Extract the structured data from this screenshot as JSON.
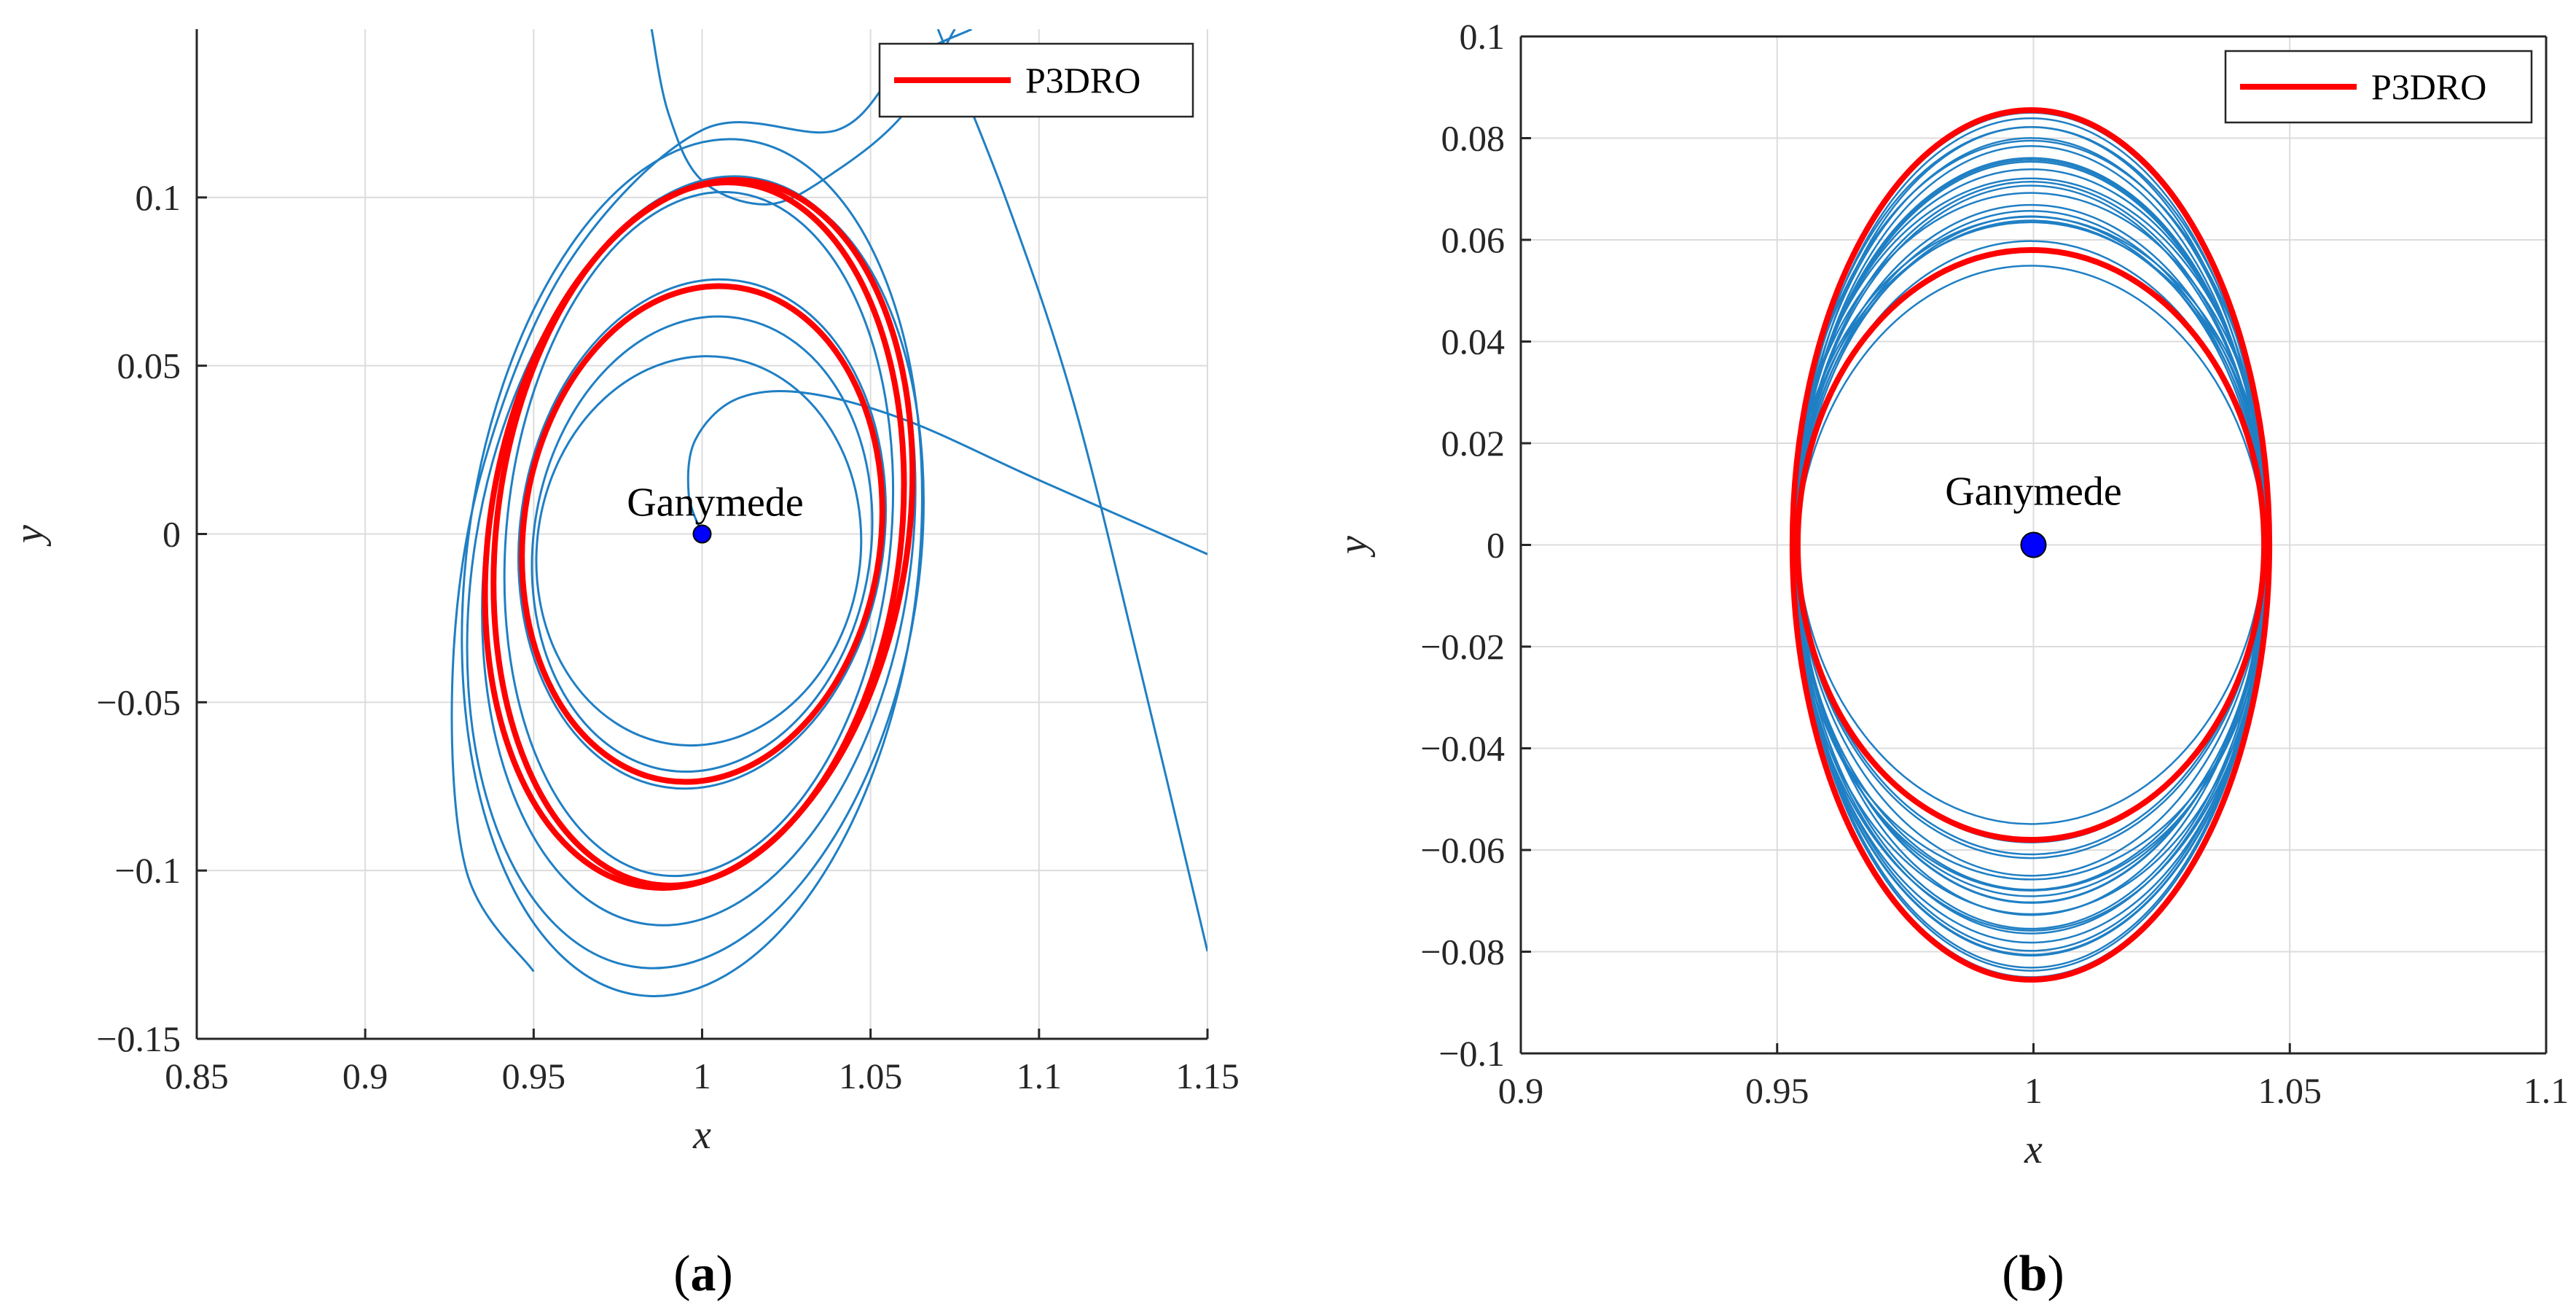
{
  "colors": {
    "orbit": "#1f7fc4",
    "p3dro": "#ff0000",
    "body": "#0000ff",
    "grid": "#dcdcdc",
    "axis": "#262626"
  },
  "chart_data": [
    {
      "type": "line",
      "panel": "a",
      "caption_open": "(",
      "caption_letter": "a",
      "caption_close": ")",
      "xlabel": "x",
      "ylabel": "y",
      "xlim": [
        0.85,
        1.15
      ],
      "ylim": [
        -0.15,
        0.15
      ],
      "xticks": [
        0.85,
        0.9,
        0.95,
        1,
        1.05,
        1.1,
        1.15
      ],
      "xtick_labels": [
        "0.85",
        "0.9",
        "0.95",
        "1",
        "1.05",
        "1.1",
        "1.15"
      ],
      "yticks": [
        -0.15,
        -0.1,
        -0.05,
        0,
        0.05,
        0.1
      ],
      "ytick_labels": [
        "−0.15",
        "−0.1",
        "−0.05",
        "0",
        "0.05",
        "0.1"
      ],
      "grid": true,
      "legend": {
        "label": "P3DRO",
        "location": "top-right"
      },
      "annotation": {
        "text": "Ganymede",
        "x": 1.0,
        "y": 0.0
      },
      "primary": {
        "name": "Ganymede",
        "x": 1.0,
        "y": 0.0
      },
      "series": [
        {
          "name": "P3DRO",
          "kind": "ellipse",
          "cx": 1.0,
          "cy": 0.0,
          "rx": 0.053,
          "ry": 0.074,
          "tilt": 8
        },
        {
          "name": "P3DRO",
          "kind": "ellipse",
          "cx": 0.999,
          "cy": 0.0,
          "rx": 0.06,
          "ry": 0.105,
          "tilt": 7
        },
        {
          "name": "P3DRO",
          "kind": "ellipse",
          "cx": 0.999,
          "cy": 0.0,
          "rx": 0.062,
          "ry": 0.106,
          "tilt": 9
        }
      ],
      "trajectories": [
        {
          "kind": "ellipse",
          "cx": 1.0,
          "cy": 0.0,
          "rx": 0.054,
          "ry": 0.076,
          "tilt": 8
        },
        {
          "kind": "ellipse",
          "cx": 1.0,
          "cy": -0.003,
          "rx": 0.05,
          "ry": 0.068,
          "tilt": 9
        },
        {
          "kind": "ellipse",
          "cx": 0.999,
          "cy": 0.0,
          "rx": 0.057,
          "ry": 0.102,
          "tilt": 6
        },
        {
          "kind": "ellipse",
          "cx": 0.999,
          "cy": -0.005,
          "rx": 0.063,
          "ry": 0.112,
          "tilt": 8
        },
        {
          "kind": "ellipse",
          "cx": 0.998,
          "cy": -0.012,
          "rx": 0.066,
          "ry": 0.118,
          "tilt": 9
        },
        {
          "kind": "ellipse",
          "cx": 0.997,
          "cy": -0.01,
          "rx": 0.067,
          "ry": 0.128,
          "tilt": 7
        },
        {
          "kind": "ellipse",
          "cx": 0.999,
          "cy": -0.005,
          "rx": 0.048,
          "ry": 0.058,
          "tilt": 8
        },
        {
          "kind": "path",
          "x": [
            1.0,
            0.996,
            0.998,
            1.01,
            1.03,
            1.06,
            1.1,
            1.15
          ],
          "y": [
            0.0,
            0.012,
            0.028,
            0.04,
            0.042,
            0.034,
            0.016,
            -0.006
          ]
        },
        {
          "kind": "path",
          "x": [
            0.95,
            0.93,
            0.926,
            0.935,
            0.96,
            1.0,
            1.04,
            1.06,
            1.08
          ],
          "y": [
            -0.13,
            -0.1,
            -0.04,
            0.02,
            0.08,
            0.12,
            0.12,
            0.14,
            0.15
          ]
        },
        {
          "kind": "path",
          "x": [
            1.07,
            1.09,
            1.11,
            1.13,
            1.15
          ],
          "y": [
            0.15,
            0.1,
            0.04,
            -0.04,
            -0.124
          ]
        },
        {
          "kind": "path",
          "x": [
            0.985,
            0.99,
            1.0,
            1.02,
            1.04,
            1.06,
            1.075
          ],
          "y": [
            0.15,
            0.125,
            0.105,
            0.098,
            0.108,
            0.125,
            0.15
          ]
        }
      ]
    },
    {
      "type": "line",
      "panel": "b",
      "caption_open": "(",
      "caption_letter": "b",
      "caption_close": ")",
      "xlabel": "x",
      "ylabel": "y",
      "xlim": [
        0.9,
        1.1
      ],
      "ylim": [
        -0.1,
        0.1
      ],
      "xticks": [
        0.9,
        0.95,
        1,
        1.05,
        1.1
      ],
      "xtick_labels": [
        "0.9",
        "0.95",
        "1",
        "1.05",
        "1.1"
      ],
      "yticks": [
        -0.1,
        -0.08,
        -0.06,
        -0.04,
        -0.02,
        0,
        0.02,
        0.04,
        0.06,
        0.08,
        0.1
      ],
      "ytick_labels": [
        "−0.1",
        "−0.08",
        "−0.06",
        "−0.04",
        "−0.02",
        "0",
        "0.02",
        "0.04",
        "0.06",
        "0.08",
        "0.1"
      ],
      "grid": true,
      "legend": {
        "label": "P3DRO",
        "location": "top-right"
      },
      "annotation": {
        "text": "Ganymede",
        "x": 1.0,
        "y": 0.0
      },
      "primary": {
        "name": "Ganymede",
        "x": 1.0,
        "y": 0.0
      },
      "series": [
        {
          "name": "P3DRO",
          "kind": "ellipse",
          "cx": 0.9995,
          "cy": 0.0,
          "rx": 0.0465,
          "ry": 0.0855,
          "tilt": 0
        },
        {
          "name": "P3DRO",
          "kind": "ellipse",
          "cx": 0.9995,
          "cy": 0.0,
          "rx": 0.0455,
          "ry": 0.058,
          "tilt": 0
        }
      ],
      "ring_band": {
        "count": 24,
        "rx_min": 0.0455,
        "rx_max": 0.0465,
        "ry_min": 0.058,
        "ry_max": 0.085,
        "cy_jitter": 0.006
      }
    }
  ]
}
